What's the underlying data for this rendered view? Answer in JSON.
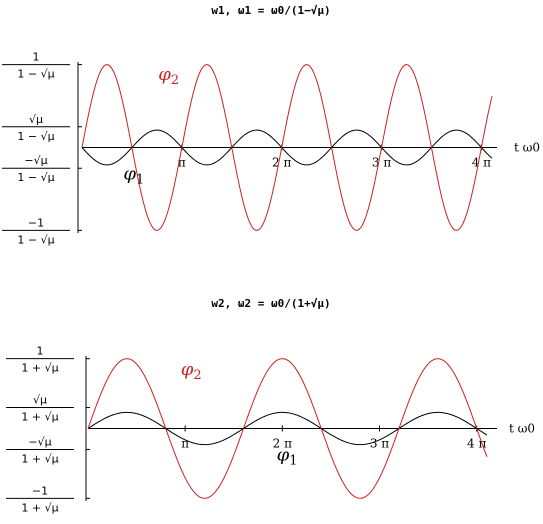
{
  "chart_data": [
    {
      "type": "line",
      "title": "w1,    ω1 = ω0/(1−√μ)",
      "xlabel": "t ω0",
      "xlim": [
        0,
        12.9
      ],
      "ylim": [
        -1.65,
        1.65
      ],
      "x_ticks": [
        {
          "value": 3.1416,
          "label": "π"
        },
        {
          "value": 6.2832,
          "label": "2 π"
        },
        {
          "value": 9.4248,
          "label": "3 π"
        },
        {
          "value": 12.5664,
          "label": "4 π"
        }
      ],
      "y_ticks": [
        {
          "value": 1.6,
          "num": "1",
          "den": "1 − √μ"
        },
        {
          "value": 0.4,
          "num": "√μ",
          "den": "1 − √μ"
        },
        {
          "value": -0.4,
          "num": "−√μ",
          "den": "1 − √μ"
        },
        {
          "value": -1.6,
          "num": "−1",
          "den": "1 − √μ"
        }
      ],
      "series": [
        {
          "name": "φ1",
          "color": "#000000",
          "amplitude": 0.336,
          "omega": 2.0,
          "phase": 3.1416
        },
        {
          "name": "φ2",
          "color": "#cc2222",
          "amplitude": 1.6,
          "omega": 2.0,
          "phase": 0.0
        }
      ],
      "labels": [
        {
          "text": "φ",
          "sub": "1",
          "color": "#000000",
          "x": 1.3,
          "y": -0.62
        },
        {
          "text": "φ",
          "sub": "2",
          "color": "#cc2222",
          "x": 2.4,
          "y": 1.3
        }
      ]
    },
    {
      "type": "line",
      "title": "w2,    ω2 = ω0/(1+√μ)",
      "xlabel": "t ω0",
      "xlim": [
        0,
        12.9
      ],
      "ylim": [
        -1.35,
        1.35
      ],
      "x_ticks": [
        {
          "value": 3.1416,
          "label": "π"
        },
        {
          "value": 6.2832,
          "label": "2 π"
        },
        {
          "value": 9.4248,
          "label": "3 π"
        },
        {
          "value": 12.5664,
          "label": "4 π"
        }
      ],
      "y_ticks": [
        {
          "value": 1.3,
          "num": "1",
          "den": "1 + √μ"
        },
        {
          "value": 0.39,
          "num": "√μ",
          "den": "1 + √μ"
        },
        {
          "value": -0.39,
          "num": "−√μ",
          "den": "1 + √μ"
        },
        {
          "value": -1.3,
          "num": "−1",
          "den": "1 + √μ"
        }
      ],
      "series": [
        {
          "name": "φ1",
          "color": "#000000",
          "amplitude": 0.3,
          "omega": 1.25,
          "phase": 0.0
        },
        {
          "name": "φ2",
          "color": "#cc2222",
          "amplitude": 1.3,
          "omega": 1.25,
          "phase": 0.0
        }
      ],
      "labels": [
        {
          "text": "φ",
          "sub": "1",
          "color": "#000000",
          "x": 6.1,
          "y": -0.6
        },
        {
          "text": "φ",
          "sub": "2",
          "color": "#cc2222",
          "x": 3.0,
          "y": 1.0
        }
      ]
    }
  ]
}
